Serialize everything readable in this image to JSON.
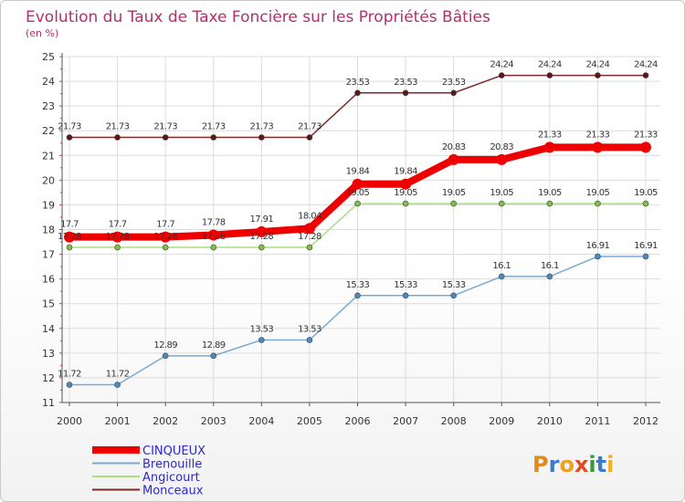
{
  "chart_data": {
    "type": "line",
    "title": "Evolution du Taux de Taxe Foncière sur les Propriétés Bâties",
    "subtitle": "(en %)",
    "xlabel": "",
    "ylabel": "",
    "categories": [
      "2000",
      "2001",
      "2002",
      "2003",
      "2004",
      "2005",
      "2006",
      "2007",
      "2008",
      "2009",
      "2010",
      "2011",
      "2012"
    ],
    "ylim": [
      11,
      25
    ],
    "yticks": [
      "11",
      "12",
      "13",
      "14",
      "15",
      "16",
      "17",
      "18",
      "19",
      "20",
      "21",
      "22",
      "23",
      "24",
      "25"
    ],
    "grid": true,
    "legend_position": "bottom-left",
    "series": [
      {
        "name": "Monceaux",
        "color": "#7a2a2a",
        "marker_color": "#5a1818",
        "values": [
          21.73,
          21.73,
          21.73,
          21.73,
          21.73,
          21.73,
          23.53,
          23.53,
          23.53,
          24.24,
          24.24,
          24.24,
          24.24
        ],
        "labels": [
          "21.73",
          "21.73",
          "21.73",
          "21.73",
          "21.73",
          "21.73",
          "23.53",
          "23.53",
          "23.53",
          "24.24",
          "24.24",
          "24.24",
          "24.24"
        ]
      },
      {
        "name": "Angicourt",
        "color": "#a8e080",
        "marker_color": "#7ec040",
        "values": [
          17.28,
          17.28,
          17.28,
          17.28,
          17.28,
          17.28,
          19.05,
          19.05,
          19.05,
          19.05,
          19.05,
          19.05,
          19.05
        ],
        "labels": [
          "17.28",
          "17.28",
          "17.28",
          "17.28",
          "17.28",
          "17.28",
          "19.05",
          "19.05",
          "19.05",
          "19.05",
          "19.05",
          "19.05",
          "19.05"
        ]
      },
      {
        "name": "Brenouille",
        "color": "#7aaad0",
        "marker_color": "#4a8ac0",
        "values": [
          11.72,
          11.72,
          12.89,
          12.89,
          13.53,
          13.53,
          15.33,
          15.33,
          15.33,
          16.1,
          16.1,
          16.91,
          16.91
        ],
        "labels": [
          "11.72",
          "11.72",
          "12.89",
          "12.89",
          "13.53",
          "13.53",
          "15.33",
          "15.33",
          "15.33",
          "16.1",
          "16.1",
          "16.91",
          "16.91"
        ]
      },
      {
        "name": "CINQUEUX",
        "color": "#ee0000",
        "marker_color": "#ee0000",
        "values": [
          17.7,
          17.7,
          17.7,
          17.78,
          17.91,
          18.04,
          19.84,
          19.84,
          20.83,
          20.83,
          21.33,
          21.33,
          21.33
        ],
        "labels": [
          "17.7",
          "17.7",
          "17.7",
          "17.78",
          "17.91",
          "18.04",
          "19.84",
          "19.84",
          "20.83",
          "20.83",
          "21.33",
          "21.33",
          "21.33"
        ]
      }
    ],
    "legend_order": [
      "CINQUEUX",
      "Brenouille",
      "Angicourt",
      "Monceaux"
    ]
  },
  "logo": {
    "letters": [
      "P",
      "r",
      "o",
      "x",
      "i",
      "t",
      "i"
    ],
    "colors": [
      "#e08a1c",
      "#3a7ac8",
      "#f0a020",
      "#e04a20",
      "#3a9a3a",
      "#3a7ac8",
      "#f0b020"
    ]
  }
}
